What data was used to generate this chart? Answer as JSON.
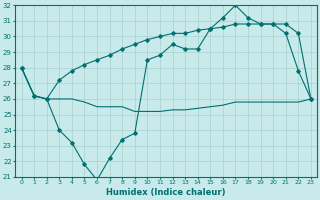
{
  "xlabel": "Humidex (Indice chaleur)",
  "xlim": [
    -0.5,
    23.5
  ],
  "ylim": [
    21,
    32
  ],
  "yticks": [
    21,
    22,
    23,
    24,
    25,
    26,
    27,
    28,
    29,
    30,
    31,
    32
  ],
  "xticks": [
    0,
    1,
    2,
    3,
    4,
    5,
    6,
    7,
    8,
    9,
    10,
    11,
    12,
    13,
    14,
    15,
    16,
    17,
    18,
    19,
    20,
    21,
    22,
    23
  ],
  "bg_color": "#c8eaea",
  "grid_color": "#a8d0d0",
  "line_color": "#007070",
  "line1_x": [
    0,
    1,
    2,
    3,
    4,
    5,
    6,
    7,
    8,
    9,
    10,
    11,
    12,
    13,
    14,
    15,
    16,
    17,
    18,
    19,
    20,
    21,
    22,
    23
  ],
  "line1_y": [
    28.0,
    26.2,
    26.0,
    24.0,
    23.2,
    21.8,
    20.8,
    22.2,
    23.4,
    23.8,
    28.5,
    28.8,
    29.5,
    29.2,
    29.2,
    30.5,
    31.2,
    32.0,
    31.2,
    30.8,
    30.8,
    30.2,
    27.8,
    26.0
  ],
  "line2_x": [
    0,
    1,
    2,
    3,
    4,
    5,
    6,
    7,
    8,
    9,
    10,
    11,
    12,
    13,
    14,
    15,
    16,
    17,
    18,
    19,
    20,
    21,
    22,
    23
  ],
  "line2_y": [
    28.0,
    26.2,
    26.0,
    26.0,
    26.0,
    25.8,
    25.5,
    25.5,
    25.5,
    25.2,
    25.2,
    25.2,
    25.3,
    25.3,
    25.4,
    25.5,
    25.6,
    25.8,
    25.8,
    25.8,
    25.8,
    25.8,
    25.8,
    26.0
  ],
  "line3_x": [
    0,
    1,
    2,
    3,
    4,
    5,
    6,
    7,
    8,
    9,
    10,
    11,
    12,
    13,
    14,
    15,
    16,
    17,
    18,
    19,
    20,
    21,
    22,
    23
  ],
  "line3_y": [
    28.0,
    26.2,
    26.0,
    27.2,
    27.8,
    28.2,
    28.5,
    28.8,
    29.2,
    29.5,
    29.8,
    30.0,
    30.2,
    30.2,
    30.4,
    30.5,
    30.6,
    30.8,
    30.8,
    30.8,
    30.8,
    30.8,
    30.2,
    26.0
  ]
}
